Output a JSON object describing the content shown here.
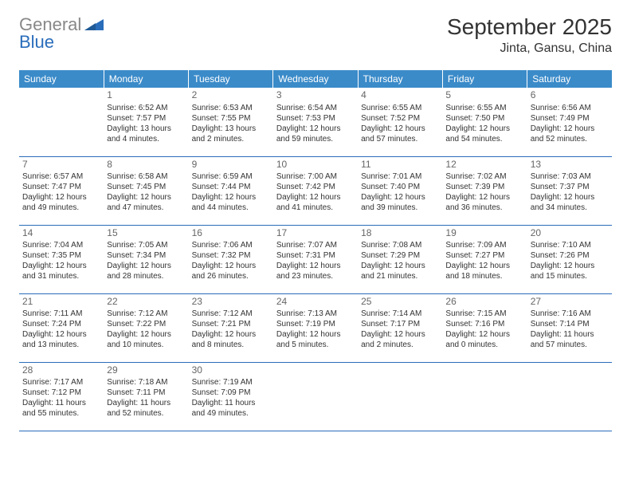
{
  "logo": {
    "gray": "General",
    "blue": "Blue"
  },
  "title": "September 2025",
  "location": "Jinta, Gansu, China",
  "colors": {
    "header_bg": "#3b8bc9",
    "header_text": "#ffffff",
    "border": "#2a6dbb",
    "text": "#333333",
    "daynum": "#666666",
    "logo_gray": "#888888",
    "logo_blue": "#2a6dbb",
    "background": "#ffffff"
  },
  "weekdays": [
    "Sunday",
    "Monday",
    "Tuesday",
    "Wednesday",
    "Thursday",
    "Friday",
    "Saturday"
  ],
  "weeks": [
    [
      null,
      {
        "n": "1",
        "sr": "Sunrise: 6:52 AM",
        "ss": "Sunset: 7:57 PM",
        "dl1": "Daylight: 13 hours",
        "dl2": "and 4 minutes."
      },
      {
        "n": "2",
        "sr": "Sunrise: 6:53 AM",
        "ss": "Sunset: 7:55 PM",
        "dl1": "Daylight: 13 hours",
        "dl2": "and 2 minutes."
      },
      {
        "n": "3",
        "sr": "Sunrise: 6:54 AM",
        "ss": "Sunset: 7:53 PM",
        "dl1": "Daylight: 12 hours",
        "dl2": "and 59 minutes."
      },
      {
        "n": "4",
        "sr": "Sunrise: 6:55 AM",
        "ss": "Sunset: 7:52 PM",
        "dl1": "Daylight: 12 hours",
        "dl2": "and 57 minutes."
      },
      {
        "n": "5",
        "sr": "Sunrise: 6:55 AM",
        "ss": "Sunset: 7:50 PM",
        "dl1": "Daylight: 12 hours",
        "dl2": "and 54 minutes."
      },
      {
        "n": "6",
        "sr": "Sunrise: 6:56 AM",
        "ss": "Sunset: 7:49 PM",
        "dl1": "Daylight: 12 hours",
        "dl2": "and 52 minutes."
      }
    ],
    [
      {
        "n": "7",
        "sr": "Sunrise: 6:57 AM",
        "ss": "Sunset: 7:47 PM",
        "dl1": "Daylight: 12 hours",
        "dl2": "and 49 minutes."
      },
      {
        "n": "8",
        "sr": "Sunrise: 6:58 AM",
        "ss": "Sunset: 7:45 PM",
        "dl1": "Daylight: 12 hours",
        "dl2": "and 47 minutes."
      },
      {
        "n": "9",
        "sr": "Sunrise: 6:59 AM",
        "ss": "Sunset: 7:44 PM",
        "dl1": "Daylight: 12 hours",
        "dl2": "and 44 minutes."
      },
      {
        "n": "10",
        "sr": "Sunrise: 7:00 AM",
        "ss": "Sunset: 7:42 PM",
        "dl1": "Daylight: 12 hours",
        "dl2": "and 41 minutes."
      },
      {
        "n": "11",
        "sr": "Sunrise: 7:01 AM",
        "ss": "Sunset: 7:40 PM",
        "dl1": "Daylight: 12 hours",
        "dl2": "and 39 minutes."
      },
      {
        "n": "12",
        "sr": "Sunrise: 7:02 AM",
        "ss": "Sunset: 7:39 PM",
        "dl1": "Daylight: 12 hours",
        "dl2": "and 36 minutes."
      },
      {
        "n": "13",
        "sr": "Sunrise: 7:03 AM",
        "ss": "Sunset: 7:37 PM",
        "dl1": "Daylight: 12 hours",
        "dl2": "and 34 minutes."
      }
    ],
    [
      {
        "n": "14",
        "sr": "Sunrise: 7:04 AM",
        "ss": "Sunset: 7:35 PM",
        "dl1": "Daylight: 12 hours",
        "dl2": "and 31 minutes."
      },
      {
        "n": "15",
        "sr": "Sunrise: 7:05 AM",
        "ss": "Sunset: 7:34 PM",
        "dl1": "Daylight: 12 hours",
        "dl2": "and 28 minutes."
      },
      {
        "n": "16",
        "sr": "Sunrise: 7:06 AM",
        "ss": "Sunset: 7:32 PM",
        "dl1": "Daylight: 12 hours",
        "dl2": "and 26 minutes."
      },
      {
        "n": "17",
        "sr": "Sunrise: 7:07 AM",
        "ss": "Sunset: 7:31 PM",
        "dl1": "Daylight: 12 hours",
        "dl2": "and 23 minutes."
      },
      {
        "n": "18",
        "sr": "Sunrise: 7:08 AM",
        "ss": "Sunset: 7:29 PM",
        "dl1": "Daylight: 12 hours",
        "dl2": "and 21 minutes."
      },
      {
        "n": "19",
        "sr": "Sunrise: 7:09 AM",
        "ss": "Sunset: 7:27 PM",
        "dl1": "Daylight: 12 hours",
        "dl2": "and 18 minutes."
      },
      {
        "n": "20",
        "sr": "Sunrise: 7:10 AM",
        "ss": "Sunset: 7:26 PM",
        "dl1": "Daylight: 12 hours",
        "dl2": "and 15 minutes."
      }
    ],
    [
      {
        "n": "21",
        "sr": "Sunrise: 7:11 AM",
        "ss": "Sunset: 7:24 PM",
        "dl1": "Daylight: 12 hours",
        "dl2": "and 13 minutes."
      },
      {
        "n": "22",
        "sr": "Sunrise: 7:12 AM",
        "ss": "Sunset: 7:22 PM",
        "dl1": "Daylight: 12 hours",
        "dl2": "and 10 minutes."
      },
      {
        "n": "23",
        "sr": "Sunrise: 7:12 AM",
        "ss": "Sunset: 7:21 PM",
        "dl1": "Daylight: 12 hours",
        "dl2": "and 8 minutes."
      },
      {
        "n": "24",
        "sr": "Sunrise: 7:13 AM",
        "ss": "Sunset: 7:19 PM",
        "dl1": "Daylight: 12 hours",
        "dl2": "and 5 minutes."
      },
      {
        "n": "25",
        "sr": "Sunrise: 7:14 AM",
        "ss": "Sunset: 7:17 PM",
        "dl1": "Daylight: 12 hours",
        "dl2": "and 2 minutes."
      },
      {
        "n": "26",
        "sr": "Sunrise: 7:15 AM",
        "ss": "Sunset: 7:16 PM",
        "dl1": "Daylight: 12 hours",
        "dl2": "and 0 minutes."
      },
      {
        "n": "27",
        "sr": "Sunrise: 7:16 AM",
        "ss": "Sunset: 7:14 PM",
        "dl1": "Daylight: 11 hours",
        "dl2": "and 57 minutes."
      }
    ],
    [
      {
        "n": "28",
        "sr": "Sunrise: 7:17 AM",
        "ss": "Sunset: 7:12 PM",
        "dl1": "Daylight: 11 hours",
        "dl2": "and 55 minutes."
      },
      {
        "n": "29",
        "sr": "Sunrise: 7:18 AM",
        "ss": "Sunset: 7:11 PM",
        "dl1": "Daylight: 11 hours",
        "dl2": "and 52 minutes."
      },
      {
        "n": "30",
        "sr": "Sunrise: 7:19 AM",
        "ss": "Sunset: 7:09 PM",
        "dl1": "Daylight: 11 hours",
        "dl2": "and 49 minutes."
      },
      null,
      null,
      null,
      null
    ]
  ]
}
